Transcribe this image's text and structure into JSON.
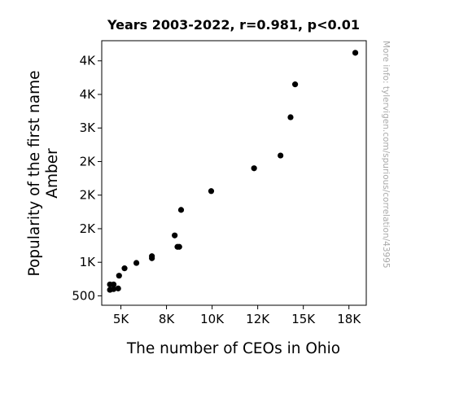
{
  "chart_data": {
    "type": "scatter",
    "title": "Years 2003-2022, r=0.981, p<0.01",
    "xlabel": "The number of CEOs in Ohio",
    "ylabel_lines": [
      "Popularity of the first name",
      "Amber"
    ],
    "watermark": "More info: tylervigen.com/spurious/correlation/43995",
    "xlim": [
      3950,
      18450
    ],
    "ylim": [
      360,
      4300
    ],
    "x_ticks": [
      {
        "value": 5000,
        "label": "5K"
      },
      {
        "value": 7500,
        "label": "8K"
      },
      {
        "value": 10000,
        "label": "10K"
      },
      {
        "value": 12500,
        "label": "12K"
      },
      {
        "value": 15000,
        "label": "15K"
      },
      {
        "value": 17500,
        "label": "18K"
      }
    ],
    "y_ticks": [
      {
        "value": 500,
        "label": "500"
      },
      {
        "value": 1000,
        "label": "1K"
      },
      {
        "value": 1500,
        "label": "2K"
      },
      {
        "value": 2000,
        "label": "2K"
      },
      {
        "value": 2500,
        "label": "2K"
      },
      {
        "value": 3000,
        "label": "3K"
      },
      {
        "value": 3500,
        "label": "4K"
      },
      {
        "value": 4000,
        "label": "4K"
      }
    ],
    "marker_color": "#000000",
    "points": [
      {
        "x": 17850,
        "y": 4120
      },
      {
        "x": 14550,
        "y": 3650
      },
      {
        "x": 14300,
        "y": 3160
      },
      {
        "x": 13750,
        "y": 2590
      },
      {
        "x": 12300,
        "y": 2400
      },
      {
        "x": 9950,
        "y": 2060
      },
      {
        "x": 8300,
        "y": 1780
      },
      {
        "x": 7950,
        "y": 1400
      },
      {
        "x": 8200,
        "y": 1230
      },
      {
        "x": 8100,
        "y": 1230
      },
      {
        "x": 6700,
        "y": 1090
      },
      {
        "x": 6700,
        "y": 1060
      },
      {
        "x": 5850,
        "y": 990
      },
      {
        "x": 5200,
        "y": 910
      },
      {
        "x": 4900,
        "y": 800
      },
      {
        "x": 4600,
        "y": 670
      },
      {
        "x": 4400,
        "y": 670
      },
      {
        "x": 4850,
        "y": 610
      },
      {
        "x": 4600,
        "y": 600
      },
      {
        "x": 4400,
        "y": 590
      }
    ]
  }
}
